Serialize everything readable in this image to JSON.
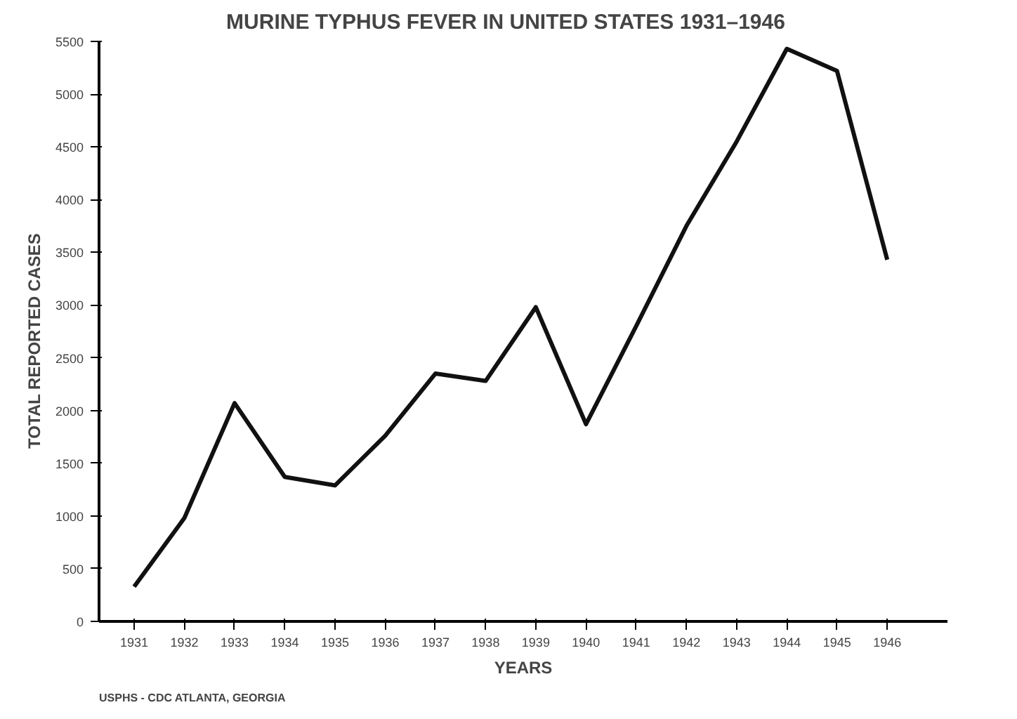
{
  "chart_data": {
    "type": "line",
    "title": "MURINE  TYPHUS  FEVER  IN  UNITED  STATES  1931–1946",
    "xlabel": "YEARS",
    "ylabel": "TOTAL   REPORTED   CASES",
    "x": [
      1931,
      1932,
      1933,
      1934,
      1935,
      1936,
      1937,
      1938,
      1939,
      1940,
      1941,
      1942,
      1943,
      1944,
      1945,
      1946
    ],
    "series": [
      {
        "color": "#111111",
        "values": [
          330,
          980,
          2070,
          1370,
          1290,
          1760,
          2350,
          2280,
          2980,
          1870,
          2800,
          3750,
          4550,
          5430,
          5220,
          3430
        ]
      }
    ],
    "xlim": [
      1930.3,
      1947.2
    ],
    "xticks": [
      1931,
      1932,
      1933,
      1934,
      1935,
      1936,
      1937,
      1938,
      1939,
      1940,
      1941,
      1942,
      1943,
      1944,
      1945,
      1946
    ],
    "ylim": [
      0,
      5500
    ],
    "yticks": [
      0,
      500,
      1000,
      1500,
      2000,
      2500,
      3000,
      3500,
      4000,
      4500,
      5000,
      5500
    ],
    "grid": false,
    "marker": "none",
    "line_style": "solid",
    "annotations": [
      "USPHS - CDC     ATLANTA,  GEORGIA"
    ]
  }
}
